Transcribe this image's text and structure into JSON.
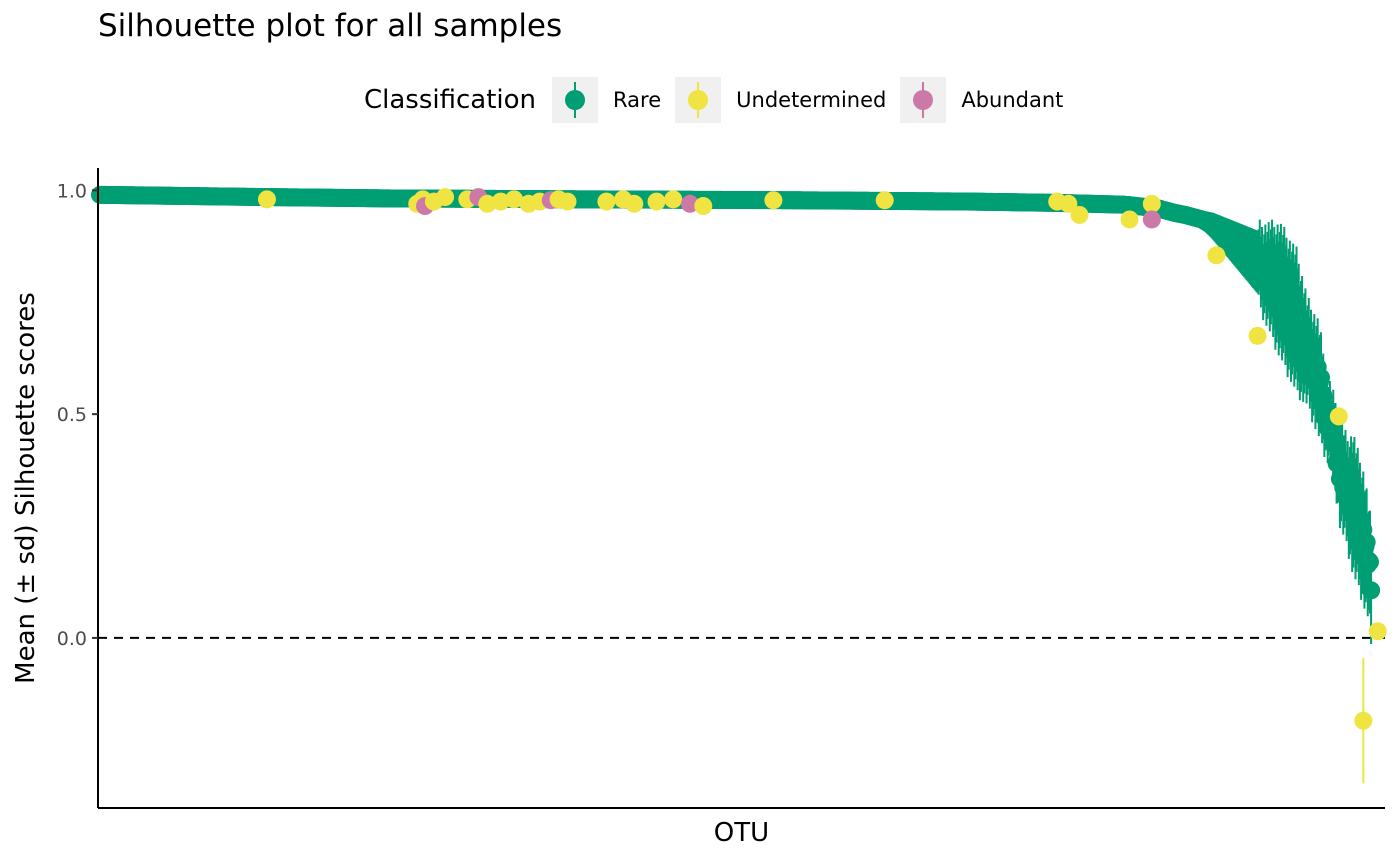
{
  "chart_data": {
    "type": "scatter",
    "title": "Silhouette plot for all samples",
    "xlabel": "OTU",
    "ylabel": "Mean (± sd) Silhouette scores",
    "ylim": [
      -0.38,
      1.05
    ],
    "yticks": [
      0.0,
      0.5,
      1.0
    ],
    "ytick_labels": [
      "0.0",
      "0.5",
      "1.0"
    ],
    "x_ticks_shown": false,
    "reference_line": {
      "y": 0.0,
      "style": "dashed"
    },
    "grid": false,
    "legend": {
      "title": "Classification",
      "position": "top"
    },
    "series": [
      {
        "name": "Rare",
        "color": "#009E73",
        "errorbar": true
      },
      {
        "name": "Undetermined",
        "color": "#F0E442",
        "errorbar": true
      },
      {
        "name": "Abundant",
        "color": "#CC79A7",
        "errorbar": true
      }
    ],
    "curve": {
      "series": "Rare",
      "x": [
        0,
        150,
        260,
        430,
        620,
        780,
        860,
        920,
        950,
        965,
        975,
        990,
        1000,
        1010,
        1020,
        1040,
        1060,
        1075,
        1085,
        1095,
        1102,
        1108,
        1114,
        1120,
        1126,
        1130,
        1136,
        1140,
        1142
      ],
      "y": [
        0.99,
        0.985,
        0.982,
        0.98,
        0.978,
        0.975,
        0.972,
        0.968,
        0.96,
        0.95,
        0.945,
        0.935,
        0.92,
        0.9,
        0.88,
        0.84,
        0.78,
        0.71,
        0.64,
        0.58,
        0.5,
        0.46,
        0.38,
        0.33,
        0.3,
        0.27,
        0.22,
        0.17,
        0.12
      ],
      "sd": [
        0.003,
        0.003,
        0.003,
        0.004,
        0.004,
        0.005,
        0.006,
        0.008,
        0.01,
        0.012,
        0.015,
        0.02,
        0.03,
        0.04,
        0.05,
        0.07,
        0.13,
        0.14,
        0.1,
        0.11,
        0.08,
        0.07,
        0.11,
        0.1,
        0.14,
        0.13,
        0.13,
        0.11,
        0.12
      ]
    },
    "points": [
      {
        "series": "Undetermined",
        "x": 150,
        "y": 0.98,
        "sd": 0
      },
      {
        "series": "Undetermined",
        "x": 285,
        "y": 0.97,
        "sd": 0
      },
      {
        "series": "Undetermined",
        "x": 290,
        "y": 0.98,
        "sd": 0
      },
      {
        "series": "Abundant",
        "x": 292,
        "y": 0.965,
        "sd": 0
      },
      {
        "series": "Undetermined",
        "x": 300,
        "y": 0.975,
        "sd": 0
      },
      {
        "series": "Undetermined",
        "x": 310,
        "y": 0.985,
        "sd": 0
      },
      {
        "series": "Undetermined",
        "x": 330,
        "y": 0.98,
        "sd": 0
      },
      {
        "series": "Abundant",
        "x": 340,
        "y": 0.985,
        "sd": 0
      },
      {
        "series": "Undetermined",
        "x": 348,
        "y": 0.97,
        "sd": 0
      },
      {
        "series": "Undetermined",
        "x": 360,
        "y": 0.975,
        "sd": 0
      },
      {
        "series": "Undetermined",
        "x": 372,
        "y": 0.98,
        "sd": 0
      },
      {
        "series": "Undetermined",
        "x": 385,
        "y": 0.97,
        "sd": 0
      },
      {
        "series": "Undetermined",
        "x": 395,
        "y": 0.975,
        "sd": 0
      },
      {
        "series": "Abundant",
        "x": 405,
        "y": 0.978,
        "sd": 0
      },
      {
        "series": "Undetermined",
        "x": 412,
        "y": 0.98,
        "sd": 0
      },
      {
        "series": "Undetermined",
        "x": 420,
        "y": 0.975,
        "sd": 0
      },
      {
        "series": "Undetermined",
        "x": 455,
        "y": 0.975,
        "sd": 0
      },
      {
        "series": "Undetermined",
        "x": 470,
        "y": 0.98,
        "sd": 0
      },
      {
        "series": "Undetermined",
        "x": 480,
        "y": 0.97,
        "sd": 0
      },
      {
        "series": "Undetermined",
        "x": 500,
        "y": 0.975,
        "sd": 0
      },
      {
        "series": "Undetermined",
        "x": 515,
        "y": 0.98,
        "sd": 0
      },
      {
        "series": "Abundant",
        "x": 530,
        "y": 0.97,
        "sd": 0
      },
      {
        "series": "Undetermined",
        "x": 542,
        "y": 0.965,
        "sd": 0
      },
      {
        "series": "Undetermined",
        "x": 605,
        "y": 0.978,
        "sd": 0
      },
      {
        "series": "Undetermined",
        "x": 705,
        "y": 0.978,
        "sd": 0
      },
      {
        "series": "Undetermined",
        "x": 860,
        "y": 0.975,
        "sd": 0
      },
      {
        "series": "Undetermined",
        "x": 870,
        "y": 0.97,
        "sd": 0
      },
      {
        "series": "Undetermined",
        "x": 880,
        "y": 0.945,
        "sd": 0
      },
      {
        "series": "Undetermined",
        "x": 925,
        "y": 0.935,
        "sd": 0
      },
      {
        "series": "Undetermined",
        "x": 945,
        "y": 0.97,
        "sd": 0
      },
      {
        "series": "Abundant",
        "x": 945,
        "y": 0.935,
        "sd": 0
      },
      {
        "series": "Undetermined",
        "x": 1003,
        "y": 0.855,
        "sd": 0
      },
      {
        "series": "Undetermined",
        "x": 1040,
        "y": 0.675,
        "sd": 0
      },
      {
        "series": "Undetermined",
        "x": 1113,
        "y": 0.495,
        "sd": 0
      },
      {
        "series": "Undetermined",
        "x": 1135,
        "y": -0.185,
        "sd": 0.14
      },
      {
        "series": "Undetermined",
        "x": 1148,
        "y": 0.015,
        "sd": 0
      }
    ],
    "x_range": [
      0,
      1150
    ]
  }
}
